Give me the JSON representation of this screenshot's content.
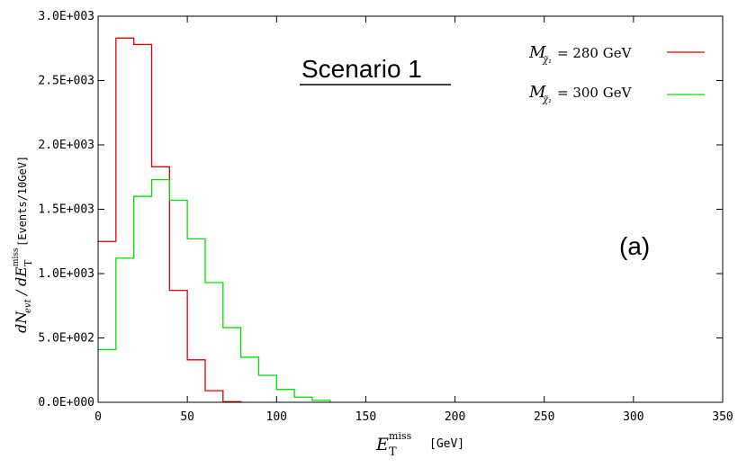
{
  "chart_data": {
    "type": "step",
    "title": "Scenario 1",
    "panel_label": "(a)",
    "xlabel": {
      "symbol": "E",
      "superscript": "miss",
      "subscript": "T",
      "unit": "[GeV]"
    },
    "ylabel": {
      "numerator": "dN",
      "numerator_sub": "evt",
      "denominator": "dE",
      "denominator_sup": "miss",
      "denominator_sub": "T",
      "unit": "[Events/10GeV]"
    },
    "xlim": [
      0,
      350
    ],
    "ylim": [
      0,
      3000
    ],
    "xticks": [
      {
        "value": 0,
        "label": "0"
      },
      {
        "value": 50,
        "label": "50"
      },
      {
        "value": 100,
        "label": "100"
      },
      {
        "value": 150,
        "label": "150"
      },
      {
        "value": 200,
        "label": "200"
      },
      {
        "value": 250,
        "label": "250"
      },
      {
        "value": 300,
        "label": "300"
      },
      {
        "value": 350,
        "label": "350"
      }
    ],
    "yticks": [
      {
        "value": 0,
        "label": "0.0E+000"
      },
      {
        "value": 500,
        "label": "5.0E+002"
      },
      {
        "value": 1000,
        "label": "1.0E+003"
      },
      {
        "value": 1500,
        "label": "1.5E+003"
      },
      {
        "value": 2000,
        "label": "2.0E+003"
      },
      {
        "value": 2500,
        "label": "2.5E+003"
      },
      {
        "value": 3000,
        "label": "3.0E+003"
      }
    ],
    "bin_width": 10,
    "series": [
      {
        "name": "M = 280 GeV",
        "legend": {
          "symbol": "M",
          "subscript": "χ̃₁",
          "value": "= 280 GeV"
        },
        "color": "#e00000",
        "x": [
          0,
          10,
          20,
          30,
          40,
          50,
          60,
          70
        ],
        "values": [
          1250,
          2830,
          2780,
          1830,
          870,
          330,
          90,
          5
        ]
      },
      {
        "name": "M = 300 GeV",
        "legend": {
          "symbol": "M",
          "subscript": "χ̃₁",
          "value": "= 300 GeV"
        },
        "color": "#00e000",
        "x": [
          0,
          10,
          20,
          30,
          40,
          50,
          60,
          70,
          80,
          90,
          100,
          110,
          120
        ],
        "values": [
          410,
          1120,
          1600,
          1730,
          1570,
          1270,
          930,
          580,
          350,
          210,
          100,
          40,
          15
        ]
      }
    ],
    "legend_position": "top-right",
    "grid": false
  }
}
